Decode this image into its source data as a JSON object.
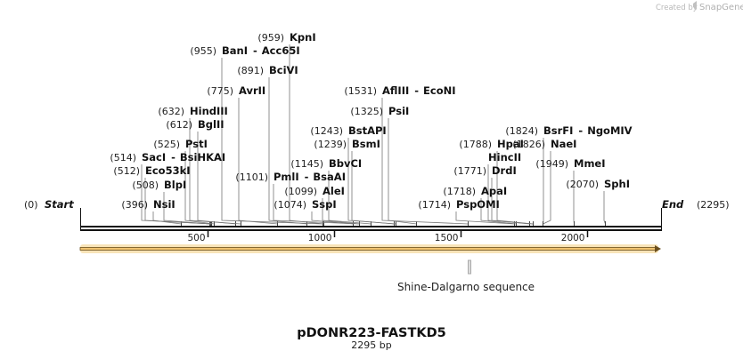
{
  "credit": {
    "prefix": "Created by",
    "brand": "SnapGene",
    "logo_icon": "snapgene-logo-icon"
  },
  "map": {
    "length": 2295,
    "start": {
      "label": "Start",
      "pos_text": "(0)"
    },
    "end": {
      "label": "End",
      "pos_text": "(2295)"
    },
    "ticks": [
      500,
      1000,
      1500,
      2000
    ],
    "tick_labels": [
      "500",
      "1000",
      "1500",
      "2000"
    ],
    "sites": [
      {
        "enzymes": [
          "NsiI"
        ],
        "pos": 396,
        "pos_text": "(396)"
      },
      {
        "enzymes": [
          "BlpI"
        ],
        "pos": 508,
        "pos_text": "(508)"
      },
      {
        "enzymes": [
          "Eco53kI"
        ],
        "pos": 512,
        "pos_text": "(512)"
      },
      {
        "enzymes": [
          "SacI",
          "BsiHKAI"
        ],
        "pos": 514,
        "pos_text": "(514)"
      },
      {
        "enzymes": [
          "PstI"
        ],
        "pos": 525,
        "pos_text": "(525)"
      },
      {
        "enzymes": [
          "BglII"
        ],
        "pos": 612,
        "pos_text": "(612)"
      },
      {
        "enzymes": [
          "HindIII"
        ],
        "pos": 632,
        "pos_text": "(632)"
      },
      {
        "enzymes": [
          "AvrII"
        ],
        "pos": 775,
        "pos_text": "(775)"
      },
      {
        "enzymes": [
          "BciVI"
        ],
        "pos": 891,
        "pos_text": "(891)"
      },
      {
        "enzymes": [
          "BanI",
          "Acc65I"
        ],
        "pos": 955,
        "pos_text": "(955)"
      },
      {
        "enzymes": [
          "KpnI"
        ],
        "pos": 959,
        "pos_text": "(959)"
      },
      {
        "enzymes": [
          "SspI"
        ],
        "pos": 1074,
        "pos_text": "(1074)"
      },
      {
        "enzymes": [
          "AleI"
        ],
        "pos": 1099,
        "pos_text": "(1099)"
      },
      {
        "enzymes": [
          "PmlI",
          "BsaAI"
        ],
        "pos": 1101,
        "pos_text": "(1101)"
      },
      {
        "enzymes": [
          "BbvCI"
        ],
        "pos": 1145,
        "pos_text": "(1145)"
      },
      {
        "enzymes": [
          "BsmI"
        ],
        "pos": 1239,
        "pos_text": "(1239)"
      },
      {
        "enzymes": [
          "BstAPI"
        ],
        "pos": 1243,
        "pos_text": "(1243)"
      },
      {
        "enzymes": [
          "PsiI"
        ],
        "pos": 1325,
        "pos_text": "(1325)"
      },
      {
        "enzymes": [
          "AflIII",
          "EcoNI"
        ],
        "pos": 1531,
        "pos_text": "(1531)"
      },
      {
        "enzymes": [
          "PspOMI"
        ],
        "pos": 1714,
        "pos_text": "(1714)"
      },
      {
        "enzymes": [
          "ApaI"
        ],
        "pos": 1718,
        "pos_text": "(1718)"
      },
      {
        "enzymes": [
          "DrdI"
        ],
        "pos": 1771,
        "pos_text": "(1771)"
      },
      {
        "enzymes": [
          "HincII"
        ],
        "pos": 1785,
        "pos_text": ""
      },
      {
        "enzymes": [
          "HpaI"
        ],
        "pos": 1788,
        "pos_text": "(1788)"
      },
      {
        "enzymes": [
          "NaeI"
        ],
        "pos": 1826,
        "pos_text": "(1826)"
      },
      {
        "enzymes": [
          "BsrFI",
          "NgoMIV"
        ],
        "pos": 1824,
        "pos_text": "(1824)"
      },
      {
        "enzymes": [
          "MmeI"
        ],
        "pos": 1949,
        "pos_text": "(1949)"
      },
      {
        "enzymes": [
          "SphI"
        ],
        "pos": 2070,
        "pos_text": "(2070)"
      }
    ],
    "features": [
      {
        "name": "Shine-Dalgarno sequence",
        "start": 1535,
        "end": 1542
      }
    ],
    "colors": {
      "arrow_fill": "#f2c471",
      "arrow_stroke": "#6b4f1d",
      "backbone": "#111111",
      "feature_box": "#aaaaaa"
    }
  },
  "plasmid": {
    "name": "pDONR223-FASTKD5",
    "size_text": "2295 bp"
  }
}
